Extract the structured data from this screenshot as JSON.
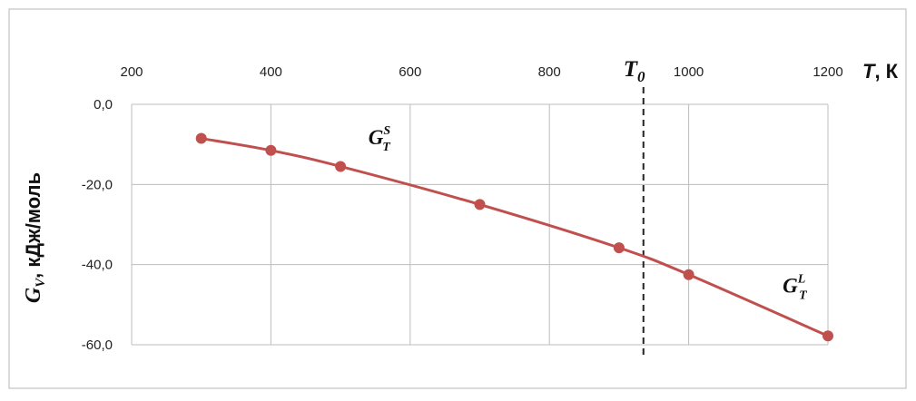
{
  "chart_data": {
    "type": "line",
    "x_axis": {
      "title_symbol": "T",
      "title_unit": ", К",
      "ticks": [
        "200",
        "400",
        "600",
        "800",
        "1000",
        "1200"
      ],
      "tick_values": [
        200,
        400,
        600,
        800,
        1000,
        1200
      ],
      "range": [
        200,
        1200
      ],
      "position": "top"
    },
    "y_axis": {
      "title_symbol": "G",
      "title_subscript": "V",
      "title_unit": ", кДж/моль",
      "ticks": [
        "0,0",
        "-20,0",
        "-40,0",
        "-60,0"
      ],
      "tick_values": [
        0,
        -20,
        -40,
        -60
      ],
      "range": [
        -60,
        0
      ]
    },
    "grid": true,
    "series": [
      {
        "color": "#c0504d",
        "points": [
          {
            "x": 300,
            "y": -8.5
          },
          {
            "x": 400,
            "y": -11.5
          },
          {
            "x": 500,
            "y": -15.5
          },
          {
            "x": 700,
            "y": -25.0
          },
          {
            "x": 900,
            "y": -35.8
          },
          {
            "x": 1000,
            "y": -42.5
          },
          {
            "x": 1200,
            "y": -57.8
          }
        ]
      }
    ],
    "reference_line": {
      "x": 935,
      "style": "dashed",
      "label_symbol": "T",
      "label_subscript": "0"
    },
    "annotations": [
      {
        "symbol": "G",
        "subscript": "T",
        "superscript": "S",
        "x": 540,
        "y": -10
      },
      {
        "symbol": "G",
        "subscript": "T",
        "superscript": "L",
        "x": 1135,
        "y": -47
      }
    ]
  }
}
